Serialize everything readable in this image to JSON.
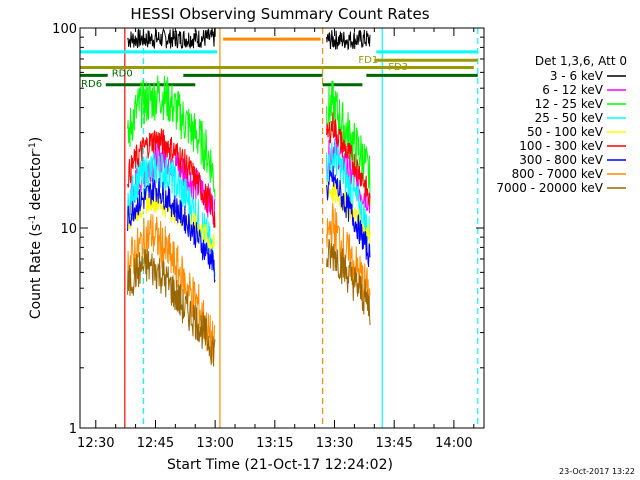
{
  "chart_data": {
    "type": "line",
    "title": "HESSI Observing Summary Count Rates",
    "xlabel": "Start Time (21-Oct-17 12:24:02)",
    "ylabel_main": "Count Rate (s",
    "ylabel_sup1": "-1",
    "ylabel_mid": " detector",
    "ylabel_sup2": "-1",
    "ylabel_end": ")",
    "y_scale": "log",
    "ylim": [
      1,
      100
    ],
    "xlim_minutes": [
      -3.967,
      97.567
    ],
    "x_ticks": [
      {
        "label": "12:30",
        "minute": 0
      },
      {
        "label": "12:45",
        "minute": 15
      },
      {
        "label": "13:00",
        "minute": 30
      },
      {
        "label": "13:15",
        "minute": 45
      },
      {
        "label": "13:30",
        "minute": 60
      },
      {
        "label": "13:45",
        "minute": 75
      },
      {
        "label": "14:00",
        "minute": 90
      }
    ],
    "y_ticks": [
      {
        "label": "1",
        "value": 1
      },
      {
        "label": "10",
        "value": 10
      },
      {
        "label": "100",
        "value": 100
      }
    ],
    "legend": {
      "header": "Det 1,3,6, Att 0",
      "placement": "right"
    },
    "series": [
      {
        "name": "3 - 6 keV",
        "color": "#000000",
        "seg1": [
          [
            8,
            88
          ],
          [
            30,
            89
          ]
        ],
        "seg2": [
          [
            58,
            87
          ],
          [
            69,
            88
          ]
        ],
        "noise": 0.05
      },
      {
        "name": "6 - 12 keV",
        "color": "#ff00ff",
        "seg1": [
          [
            8,
            10
          ],
          [
            9,
            15
          ],
          [
            12,
            19
          ],
          [
            14,
            21
          ],
          [
            17,
            23
          ],
          [
            20,
            21
          ],
          [
            23,
            18
          ],
          [
            26,
            16
          ],
          [
            28,
            14
          ],
          [
            30,
            12
          ]
        ],
        "seg2": [
          [
            58,
            21
          ],
          [
            60,
            26
          ],
          [
            63,
            20
          ],
          [
            66,
            16
          ],
          [
            69,
            14
          ]
        ],
        "noise": 0.09
      },
      {
        "name": "12 - 25 keV",
        "color": "#00ff00",
        "seg1": [
          [
            8,
            26
          ],
          [
            9,
            34
          ],
          [
            11,
            41
          ],
          [
            14,
            44
          ],
          [
            16,
            47
          ],
          [
            18,
            44
          ],
          [
            21,
            37
          ],
          [
            24,
            31
          ],
          [
            27,
            26
          ],
          [
            29,
            21
          ],
          [
            30,
            16
          ]
        ],
        "seg2": [
          [
            58,
            38
          ],
          [
            59.5,
            42
          ],
          [
            62,
            33
          ],
          [
            65,
            26
          ],
          [
            67,
            23
          ],
          [
            69,
            17
          ]
        ],
        "noise": 0.12
      },
      {
        "name": "25 - 50 keV",
        "color": "#00ffff",
        "seg1": [
          [
            8,
            12
          ],
          [
            10,
            17
          ],
          [
            13,
            19
          ],
          [
            16,
            20
          ],
          [
            19,
            18
          ],
          [
            22,
            15
          ],
          [
            25,
            12
          ],
          [
            28,
            9
          ],
          [
            30,
            7
          ]
        ],
        "seg2": [
          [
            58,
            20
          ],
          [
            60,
            23
          ],
          [
            63,
            17
          ],
          [
            66,
            13
          ],
          [
            69,
            9
          ]
        ],
        "noise": 0.1
      },
      {
        "name": "50 - 100 keV",
        "color": "#ffff00",
        "seg1": [
          [
            8,
            11
          ],
          [
            14,
            14
          ],
          [
            20,
            12
          ],
          [
            26,
            10
          ],
          [
            30,
            8
          ]
        ],
        "seg2": [
          [
            58,
            16
          ],
          [
            63,
            13
          ],
          [
            69,
            9
          ]
        ],
        "noise": 0.06
      },
      {
        "name": "100 - 300 keV",
        "color": "#ff0000",
        "seg1": [
          [
            8,
            18
          ],
          [
            10,
            22
          ],
          [
            12,
            25
          ],
          [
            15,
            28
          ],
          [
            18,
            26
          ],
          [
            21,
            23
          ],
          [
            24,
            19
          ],
          [
            27,
            15
          ],
          [
            29,
            13
          ],
          [
            30,
            11
          ]
        ],
        "seg2": [
          [
            58,
            28
          ],
          [
            59.5,
            33
          ],
          [
            62,
            26
          ],
          [
            65,
            21
          ],
          [
            67,
            18
          ],
          [
            69,
            13
          ]
        ],
        "noise": 0.07
      },
      {
        "name": "300 - 800 keV",
        "color": "#0000ff",
        "seg1": [
          [
            8,
            11
          ],
          [
            10,
            13
          ],
          [
            12,
            14
          ],
          [
            15,
            16
          ],
          [
            18,
            14
          ],
          [
            21,
            12
          ],
          [
            24,
            10
          ],
          [
            27,
            8
          ],
          [
            29,
            7
          ],
          [
            30,
            6
          ]
        ],
        "seg2": [
          [
            58,
            15
          ],
          [
            59.5,
            18
          ],
          [
            62,
            14
          ],
          [
            65,
            11
          ],
          [
            67,
            9
          ],
          [
            69,
            7
          ]
        ],
        "noise": 0.07
      },
      {
        "name": "800 - 7000 keV",
        "color": "#ff8c00",
        "seg1": [
          [
            8,
            6.5
          ],
          [
            10,
            7.5
          ],
          [
            12,
            8.5
          ],
          [
            14,
            9.5
          ],
          [
            17,
            8
          ],
          [
            20,
            6.5
          ],
          [
            23,
            5
          ],
          [
            26,
            4
          ],
          [
            28,
            3
          ],
          [
            30,
            2.5
          ]
        ],
        "seg2": [
          [
            58,
            9
          ],
          [
            59.5,
            10.5
          ],
          [
            62,
            8
          ],
          [
            65,
            6.5
          ],
          [
            67,
            5.5
          ],
          [
            69,
            4.5
          ]
        ],
        "noise": 0.12
      },
      {
        "name": "7000 - 20000 keV",
        "color": "#996600",
        "seg1": [
          [
            8,
            5
          ],
          [
            10,
            6
          ],
          [
            13,
            6.5
          ],
          [
            16,
            6
          ],
          [
            19,
            5
          ],
          [
            22,
            4
          ],
          [
            25,
            3.5
          ],
          [
            28,
            2.8
          ],
          [
            30,
            2.4
          ]
        ],
        "seg2": [
          [
            58,
            7
          ],
          [
            60,
            7.5
          ],
          [
            63,
            6
          ],
          [
            66,
            5
          ],
          [
            69,
            4
          ]
        ],
        "noise": 0.1
      }
    ],
    "vertical_markers": [
      {
        "minute": 7.3,
        "color": "#ff0000",
        "style": "solid"
      },
      {
        "minute": 12.0,
        "color": "#00ffff",
        "style": "dashed"
      },
      {
        "minute": 31.2,
        "color": "#ff8c00",
        "style": "solid"
      },
      {
        "minute": 57.0,
        "color": "#ff8c00",
        "style": "dashed"
      },
      {
        "minute": 72.0,
        "color": "#00ffff",
        "style": "solid"
      },
      {
        "minute": 96.0,
        "color": "#00ffff",
        "style": "dashed"
      }
    ],
    "flag_bars": [
      {
        "minute_from": -3.9,
        "minute_to": 30.5,
        "value": 76,
        "color": "#00ffff"
      },
      {
        "minute_from": 70.5,
        "minute_to": 96.0,
        "value": 76,
        "color": "#00ffff"
      },
      {
        "minute_from": 32.0,
        "minute_to": 56.5,
        "value": 88,
        "color": "#ff8c00"
      },
      {
        "minute_from": -3.9,
        "minute_to": 95.0,
        "value": 63.5,
        "color": "#999900"
      },
      {
        "minute_from": 70.0,
        "minute_to": 96.0,
        "value": 69,
        "color": "#999900"
      },
      {
        "minute_from": -3.9,
        "minute_to": 3.0,
        "value": 58,
        "color": "#006600"
      },
      {
        "minute_from": 22.0,
        "minute_to": 57.0,
        "value": 58,
        "color": "#006600"
      },
      {
        "minute_from": 68.0,
        "minute_to": 96.0,
        "value": 58,
        "color": "#006600"
      },
      {
        "minute_from": 2.5,
        "minute_to": 25.0,
        "value": 52,
        "color": "#006600"
      },
      {
        "minute_from": 57.0,
        "minute_to": 67.0,
        "value": 52,
        "color": "#006600"
      }
    ],
    "flag_labels": [
      {
        "text": "RD0",
        "minute": 4.0,
        "value": 60,
        "color": "#006600"
      },
      {
        "text": "RD6",
        "minute": -3.7,
        "value": 53,
        "color": "#006600"
      },
      {
        "text": "FD1",
        "minute": 66.0,
        "value": 70,
        "color": "#999900"
      },
      {
        "text": "FD3",
        "minute": 73.5,
        "value": 64.5,
        "color": "#999900"
      }
    ]
  },
  "footer": {
    "timestamp": "23-Oct-2017 13:22"
  }
}
